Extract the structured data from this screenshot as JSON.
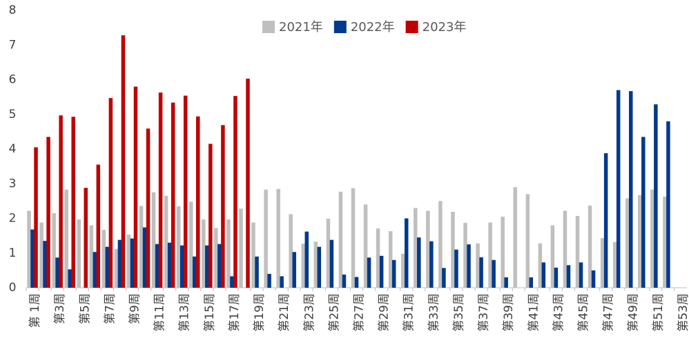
{
  "chart_data": {
    "type": "bar",
    "categories": [
      "第 1周",
      null,
      "第3周",
      null,
      "第5周",
      null,
      "第7周",
      null,
      "第9周",
      null,
      "第11周",
      null,
      "第13周",
      null,
      "第15周",
      null,
      "第17周",
      null,
      "第19周",
      null,
      "第21周",
      null,
      "第23周",
      null,
      "第25周",
      null,
      "第27周",
      null,
      "第29周",
      null,
      "第31周",
      null,
      "第33周",
      null,
      "第35周",
      null,
      "第37周",
      null,
      "第39周",
      null,
      "第41周",
      null,
      "第43周",
      null,
      "第45周",
      null,
      "第47周",
      null,
      "第49周",
      null,
      "第51周",
      null,
      "第53周"
    ],
    "series": [
      {
        "name": "2021年",
        "color": "#bfbfbf",
        "values": [
          2.22,
          1.88,
          2.15,
          2.83,
          1.97,
          1.8,
          1.67,
          1.12,
          1.53,
          2.36,
          2.75,
          2.65,
          2.35,
          2.48,
          1.97,
          1.72,
          1.97,
          2.28,
          1.88,
          2.83,
          2.85,
          2.12,
          1.27,
          1.33,
          1.99,
          2.77,
          2.87,
          2.4,
          1.71,
          1.63,
          0.98,
          2.3,
          2.22,
          2.5,
          2.19,
          1.87,
          1.28,
          1.88,
          2.05,
          2.9,
          2.7,
          1.28,
          1.8,
          2.22,
          2.07,
          2.37,
          1.43,
          1.32,
          2.58,
          2.67,
          2.83,
          2.63,
          null
        ]
      },
      {
        "name": "2022年",
        "color": "#003a8c",
        "values": [
          1.68,
          1.35,
          0.87,
          0.53,
          null,
          1.03,
          1.18,
          1.38,
          1.42,
          1.74,
          1.26,
          1.3,
          1.22,
          0.9,
          1.22,
          1.26,
          0.33,
          null,
          0.9,
          0.4,
          0.33,
          1.03,
          1.62,
          1.18,
          1.38,
          0.38,
          0.31,
          0.87,
          0.92,
          0.8,
          2.0,
          1.45,
          1.34,
          0.57,
          1.1,
          1.25,
          0.88,
          0.8,
          0.3,
          null,
          0.3,
          0.73,
          0.58,
          0.65,
          0.73,
          0.5,
          3.88,
          5.7,
          5.67,
          4.35,
          5.29,
          4.8,
          null
        ]
      },
      {
        "name": "2023年",
        "color": "#c00000",
        "values": [
          4.05,
          4.35,
          4.97,
          4.93,
          2.88,
          3.55,
          5.47,
          7.28,
          5.8,
          4.59,
          5.63,
          5.34,
          5.54,
          4.94,
          4.15,
          4.69,
          5.53,
          6.03,
          null,
          null,
          null,
          null,
          null,
          null,
          null,
          null,
          null,
          null,
          null,
          null,
          null,
          null,
          null,
          null,
          null,
          null,
          null,
          null,
          null,
          null,
          null,
          null,
          null,
          null,
          null,
          null,
          null,
          null,
          null,
          null,
          null,
          null,
          null
        ]
      }
    ],
    "ylim": [
      0,
      8
    ],
    "yticks": [
      0,
      1,
      2,
      3,
      4,
      5,
      6,
      7,
      8
    ],
    "legend": "top"
  }
}
